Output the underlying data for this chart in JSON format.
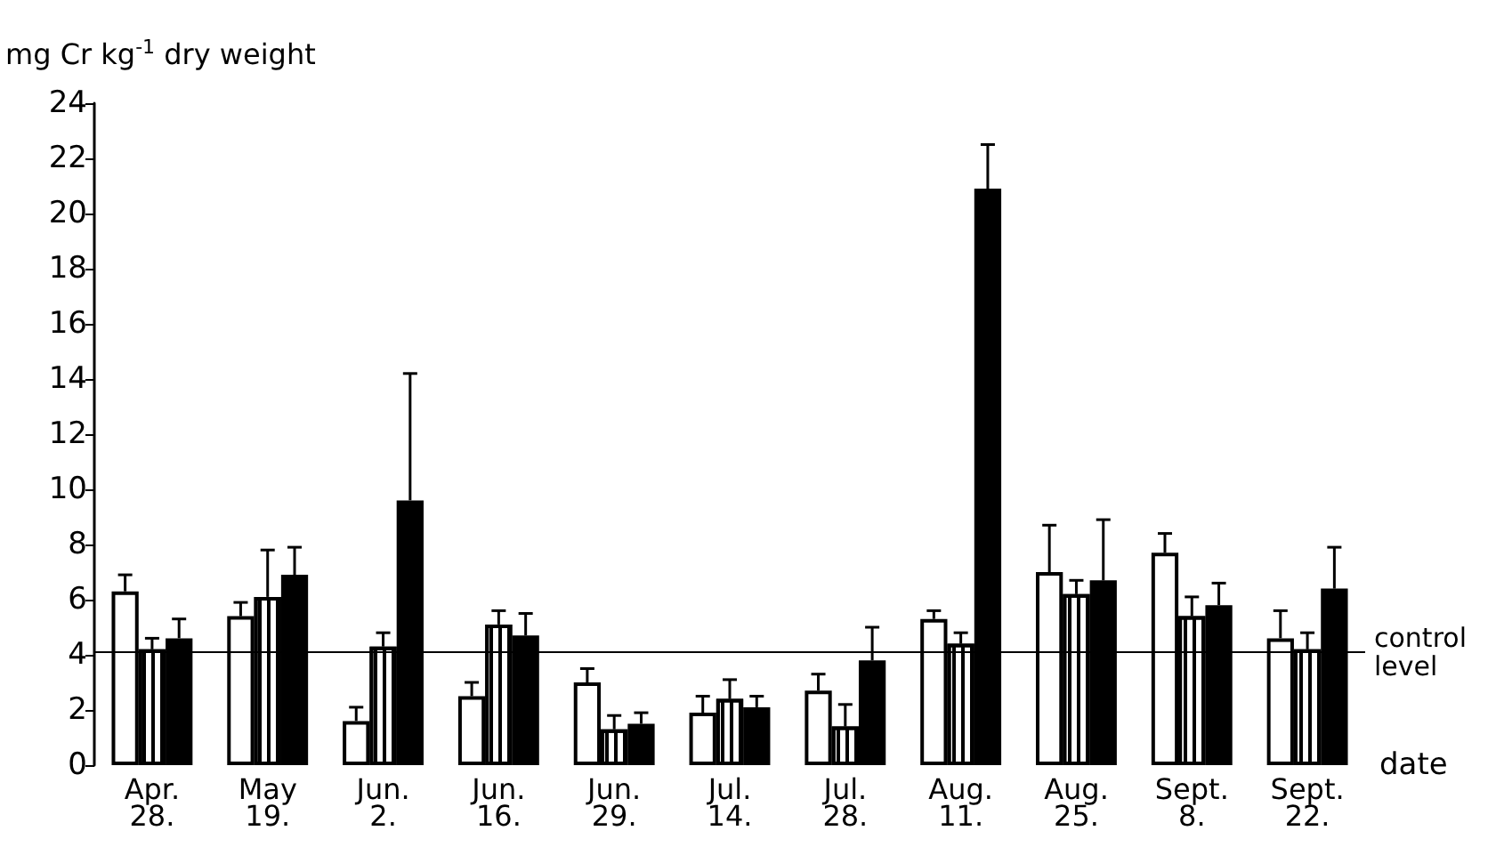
{
  "chart_data": {
    "type": "bar",
    "ylabel": "mg Cr kg$^{-1}$ dry weight",
    "xlabel": "date",
    "categories": [
      "Apr.\n28.",
      "May\n19.",
      "Jun.\n2.",
      "Jun.\n16.",
      "Jun.\n29.",
      "Jul.\n14.",
      "Jul.\n28.",
      "Aug.\n11.",
      "Aug.\n25.",
      "Sept.\n8.",
      "Sept.\n22."
    ],
    "series": [
      {
        "color": "#ffffff",
        "values": [
          6.3,
          5.4,
          1.6,
          2.5,
          3.0,
          1.9,
          2.7,
          5.3,
          7.0,
          7.7,
          4.6
        ],
        "errors": [
          [
            6.3,
            6.9
          ],
          [
            5.4,
            5.9
          ],
          [
            1.6,
            2.1
          ],
          [
            2.5,
            3.0
          ],
          [
            3.0,
            3.5
          ],
          [
            1.9,
            2.5
          ],
          [
            2.7,
            3.3
          ],
          [
            5.3,
            5.6
          ],
          [
            7.0,
            8.7
          ],
          [
            7.7,
            8.4
          ],
          [
            4.6,
            5.6
          ]
        ]
      },
      {
        "color": "#ffffff",
        "values": [
          4.2,
          6.1,
          4.3,
          5.1,
          1.3,
          2.4,
          1.4,
          4.4,
          6.2,
          5.4,
          4.2
        ],
        "errors": [
          [
            4.2,
            4.6
          ],
          [
            6.1,
            7.8
          ],
          [
            4.3,
            4.8
          ],
          [
            5.1,
            5.6
          ],
          [
            1.3,
            1.8
          ],
          [
            2.4,
            3.1
          ],
          [
            1.4,
            2.2
          ],
          [
            4.4,
            4.8
          ],
          [
            6.2,
            6.7
          ],
          [
            5.4,
            6.1
          ],
          [
            4.2,
            4.8
          ]
        ]
      },
      {
        "color": "#000000",
        "values": [
          4.6,
          6.9,
          9.6,
          4.7,
          1.5,
          2.1,
          3.8,
          20.9,
          6.7,
          5.8,
          6.4
        ],
        "errors": [
          [
            4.6,
            5.3
          ],
          [
            6.9,
            7.9
          ],
          [
            9.6,
            14.2
          ],
          [
            4.7,
            5.5
          ],
          [
            1.5,
            1.9
          ],
          [
            2.1,
            2.5
          ],
          [
            3.8,
            5.0
          ],
          [
            20.9,
            22.5
          ],
          [
            6.7,
            8.9
          ],
          [
            5.8,
            6.6
          ],
          [
            6.4,
            7.9
          ]
        ]
      }
    ],
    "ylim": [
      0,
      24
    ],
    "yticks": [
      0,
      2,
      4,
      6,
      8,
      10,
      12,
      14,
      16,
      18,
      20,
      22,
      24
    ],
    "ref_lines": [
      {
        "axis": "y",
        "value": 4.1,
        "label": "control\nlevel",
        "color": "#000000",
        "line_style": "solid"
      }
    ],
    "grid": false
  }
}
